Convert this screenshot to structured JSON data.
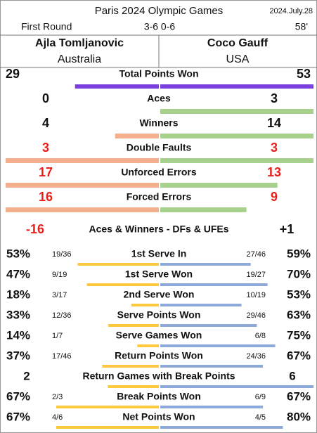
{
  "header": {
    "title": "Paris 2024 Olympic Games",
    "date": "2024.July.28",
    "round": "First Round",
    "score": "3-6 0-6",
    "duration": "58'"
  },
  "players": [
    {
      "name": "Ajla Tomljanovic",
      "country": "Australia"
    },
    {
      "name": "Coco Gauff",
      "country": "USA"
    }
  ],
  "colors": {
    "total": "#7b3fe0",
    "left": "#f4b08c",
    "right": "#a9d18e",
    "left_pct": "#ffc83d",
    "right_pct": "#8eaadb",
    "alert": "#e8201c",
    "text": "#111111"
  },
  "count_stats": [
    {
      "label": "Total Points Won",
      "left": 29,
      "right": 53,
      "alert": false,
      "total": true
    },
    {
      "label": "Aces",
      "left": 0,
      "right": 3,
      "alert": false
    },
    {
      "label": "Winners",
      "left": 4,
      "right": 14,
      "alert": false
    },
    {
      "label": "Double Faults",
      "left": 3,
      "right": 3,
      "alert": true
    },
    {
      "label": "Unforced Errors",
      "left": 17,
      "right": 13,
      "alert": true
    },
    {
      "label": "Forced Errors",
      "left": 16,
      "right": 9,
      "alert": true
    }
  ],
  "net": {
    "label": "Aces & Winners - DFs & UFEs",
    "left": "-16",
    "right": "+1",
    "left_alert": true,
    "right_alert": false
  },
  "pct_stats": [
    {
      "label": "1st Serve In",
      "left_pct": "53%",
      "left_frac": "19/36",
      "right_frac": "27/46",
      "right_pct": "59%"
    },
    {
      "label": "1st Serve Won",
      "left_pct": "47%",
      "left_frac": "9/19",
      "right_frac": "19/27",
      "right_pct": "70%"
    },
    {
      "label": "2nd Serve Won",
      "left_pct": "18%",
      "left_frac": "3/17",
      "right_frac": "10/19",
      "right_pct": "53%"
    },
    {
      "label": "Serve Points Won",
      "left_pct": "33%",
      "left_frac": "12/36",
      "right_frac": "29/46",
      "right_pct": "63%"
    },
    {
      "label": "Serve Games Won",
      "left_pct": "14%",
      "left_frac": "1/7",
      "right_frac": "6/8",
      "right_pct": "75%"
    },
    {
      "label": "Return Points Won",
      "left_pct": "37%",
      "left_frac": "17/46",
      "right_frac": "24/36",
      "right_pct": "67%"
    },
    {
      "label": "Return Games with Break Points",
      "left": 2,
      "right": 6
    },
    {
      "label": "Break Points Won",
      "left_pct": "67%",
      "left_frac": "2/3",
      "right_frac": "6/9",
      "right_pct": "67%"
    },
    {
      "label": "Net Points Won",
      "left_pct": "67%",
      "left_frac": "4/6",
      "right_frac": "4/5",
      "right_pct": "80%"
    }
  ]
}
